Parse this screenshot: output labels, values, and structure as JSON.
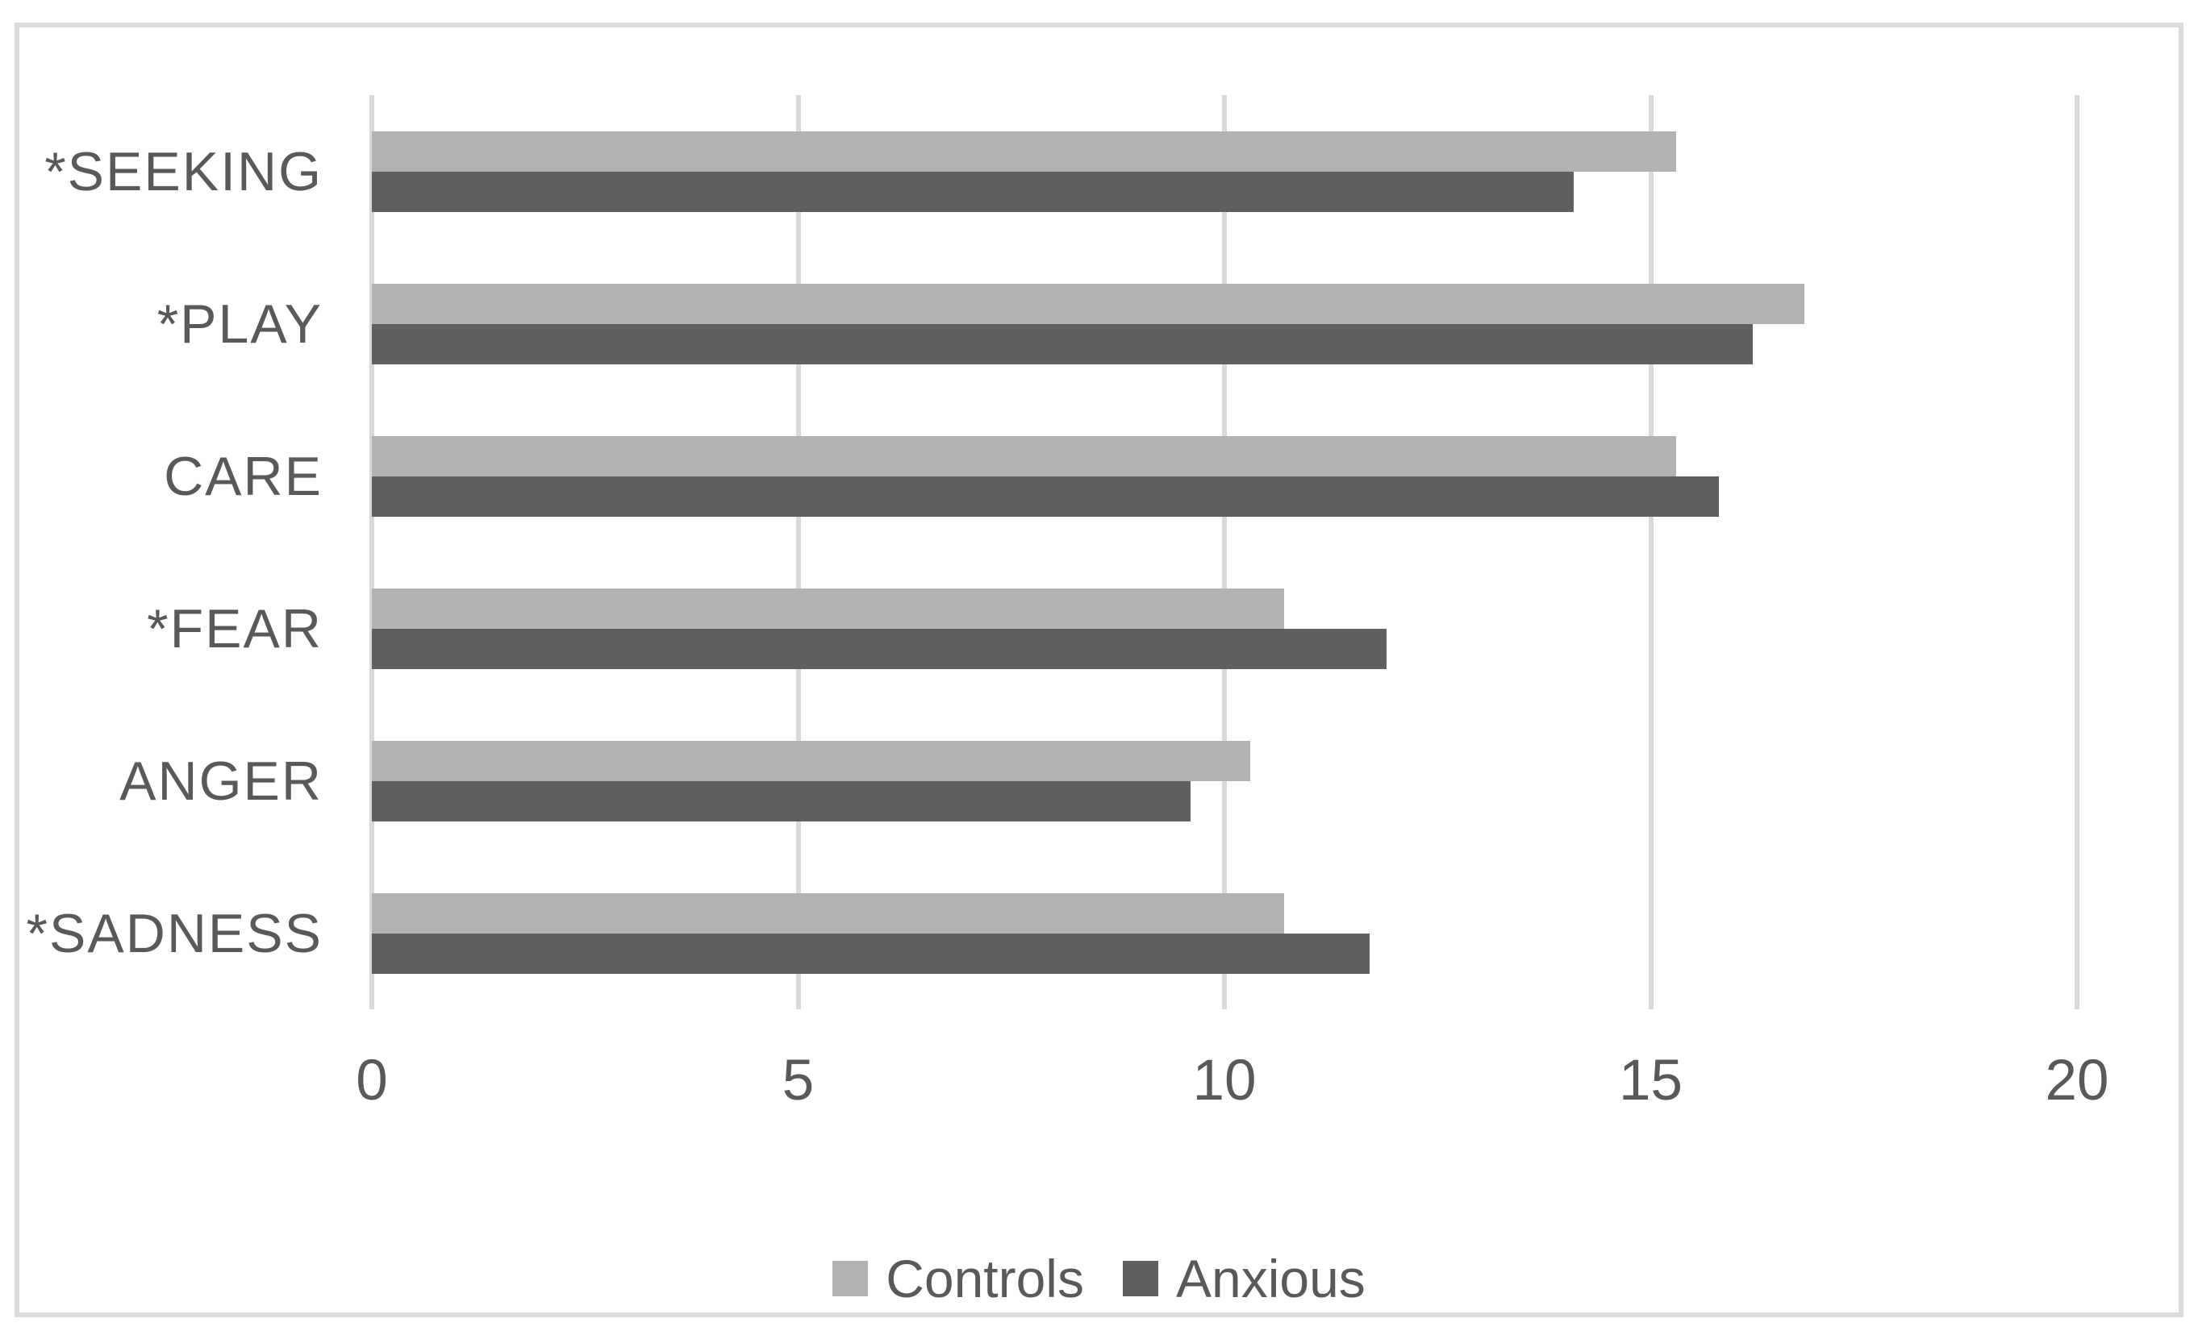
{
  "figure": {
    "background": "#FFFFFF",
    "frame_border_color": "#DBDBDB",
    "text_color": "#595959",
    "gridline_color": "#D9D9D9"
  },
  "chart_data": {
    "type": "bar",
    "orientation": "horizontal",
    "title": "",
    "xlabel": "",
    "ylabel": "",
    "categories": [
      "*SEEKING",
      "*PLAY",
      "CARE",
      "*FEAR",
      "ANGER",
      "*SADNESS"
    ],
    "series": [
      {
        "name": "Controls",
        "color": "#B2B2B2",
        "values": [
          15.3,
          16.8,
          15.3,
          10.7,
          10.3,
          10.7
        ]
      },
      {
        "name": "Anxious",
        "color": "#5F5F5F",
        "values": [
          14.1,
          16.2,
          15.8,
          11.9,
          9.6,
          11.7
        ]
      }
    ],
    "xlim": [
      0,
      20
    ],
    "x_ticks": [
      0,
      5,
      10,
      15,
      20
    ],
    "grid": "vertical-gridlines-on",
    "legend_position": "bottom-center"
  }
}
